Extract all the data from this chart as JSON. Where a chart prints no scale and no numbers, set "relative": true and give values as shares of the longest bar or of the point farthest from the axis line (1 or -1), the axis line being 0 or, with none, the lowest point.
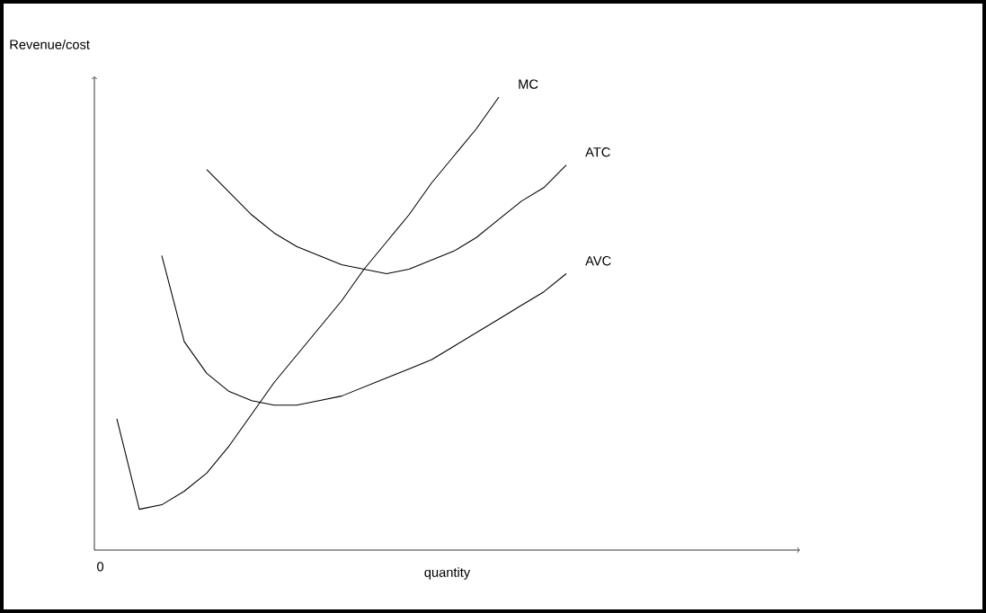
{
  "chart_data": {
    "type": "line",
    "relative": true,
    "ylabel": "Revenue/cost",
    "xlabel": "quantity",
    "annotations": [
      "0"
    ],
    "marker": "none",
    "line_style": "solid",
    "categories": [
      null,
      null,
      null,
      null,
      null,
      null,
      null,
      null,
      null,
      null,
      null,
      null,
      null,
      null,
      null,
      null,
      null,
      null,
      null,
      null,
      null
    ],
    "series": [
      {
        "name": "MC",
        "color": "#000000",
        "values": [
          0.29,
          0.09,
          0.1,
          0.13,
          0.17,
          0.23,
          0.3,
          0.37,
          0.43,
          0.49,
          0.55,
          0.62,
          0.68,
          0.74,
          0.81,
          0.87,
          0.93,
          1,
          null,
          null,
          null
        ]
      },
      {
        "name": "ATC",
        "color": "#000000",
        "values": [
          null,
          null,
          null,
          null,
          0.84,
          0.79,
          0.74,
          0.7,
          0.67,
          0.65,
          0.63,
          0.62,
          0.61,
          0.62,
          0.64,
          0.66,
          0.69,
          0.73,
          0.77,
          0.8,
          0.85
        ]
      },
      {
        "name": "AVC",
        "color": "#000000",
        "values": [
          null,
          null,
          0.65,
          0.46,
          0.39,
          0.35,
          0.33,
          0.32,
          0.32,
          0.33,
          0.34,
          0.36,
          0.38,
          0.4,
          0.42,
          0.45,
          0.48,
          0.51,
          0.54,
          0.57,
          0.61
        ]
      }
    ]
  }
}
